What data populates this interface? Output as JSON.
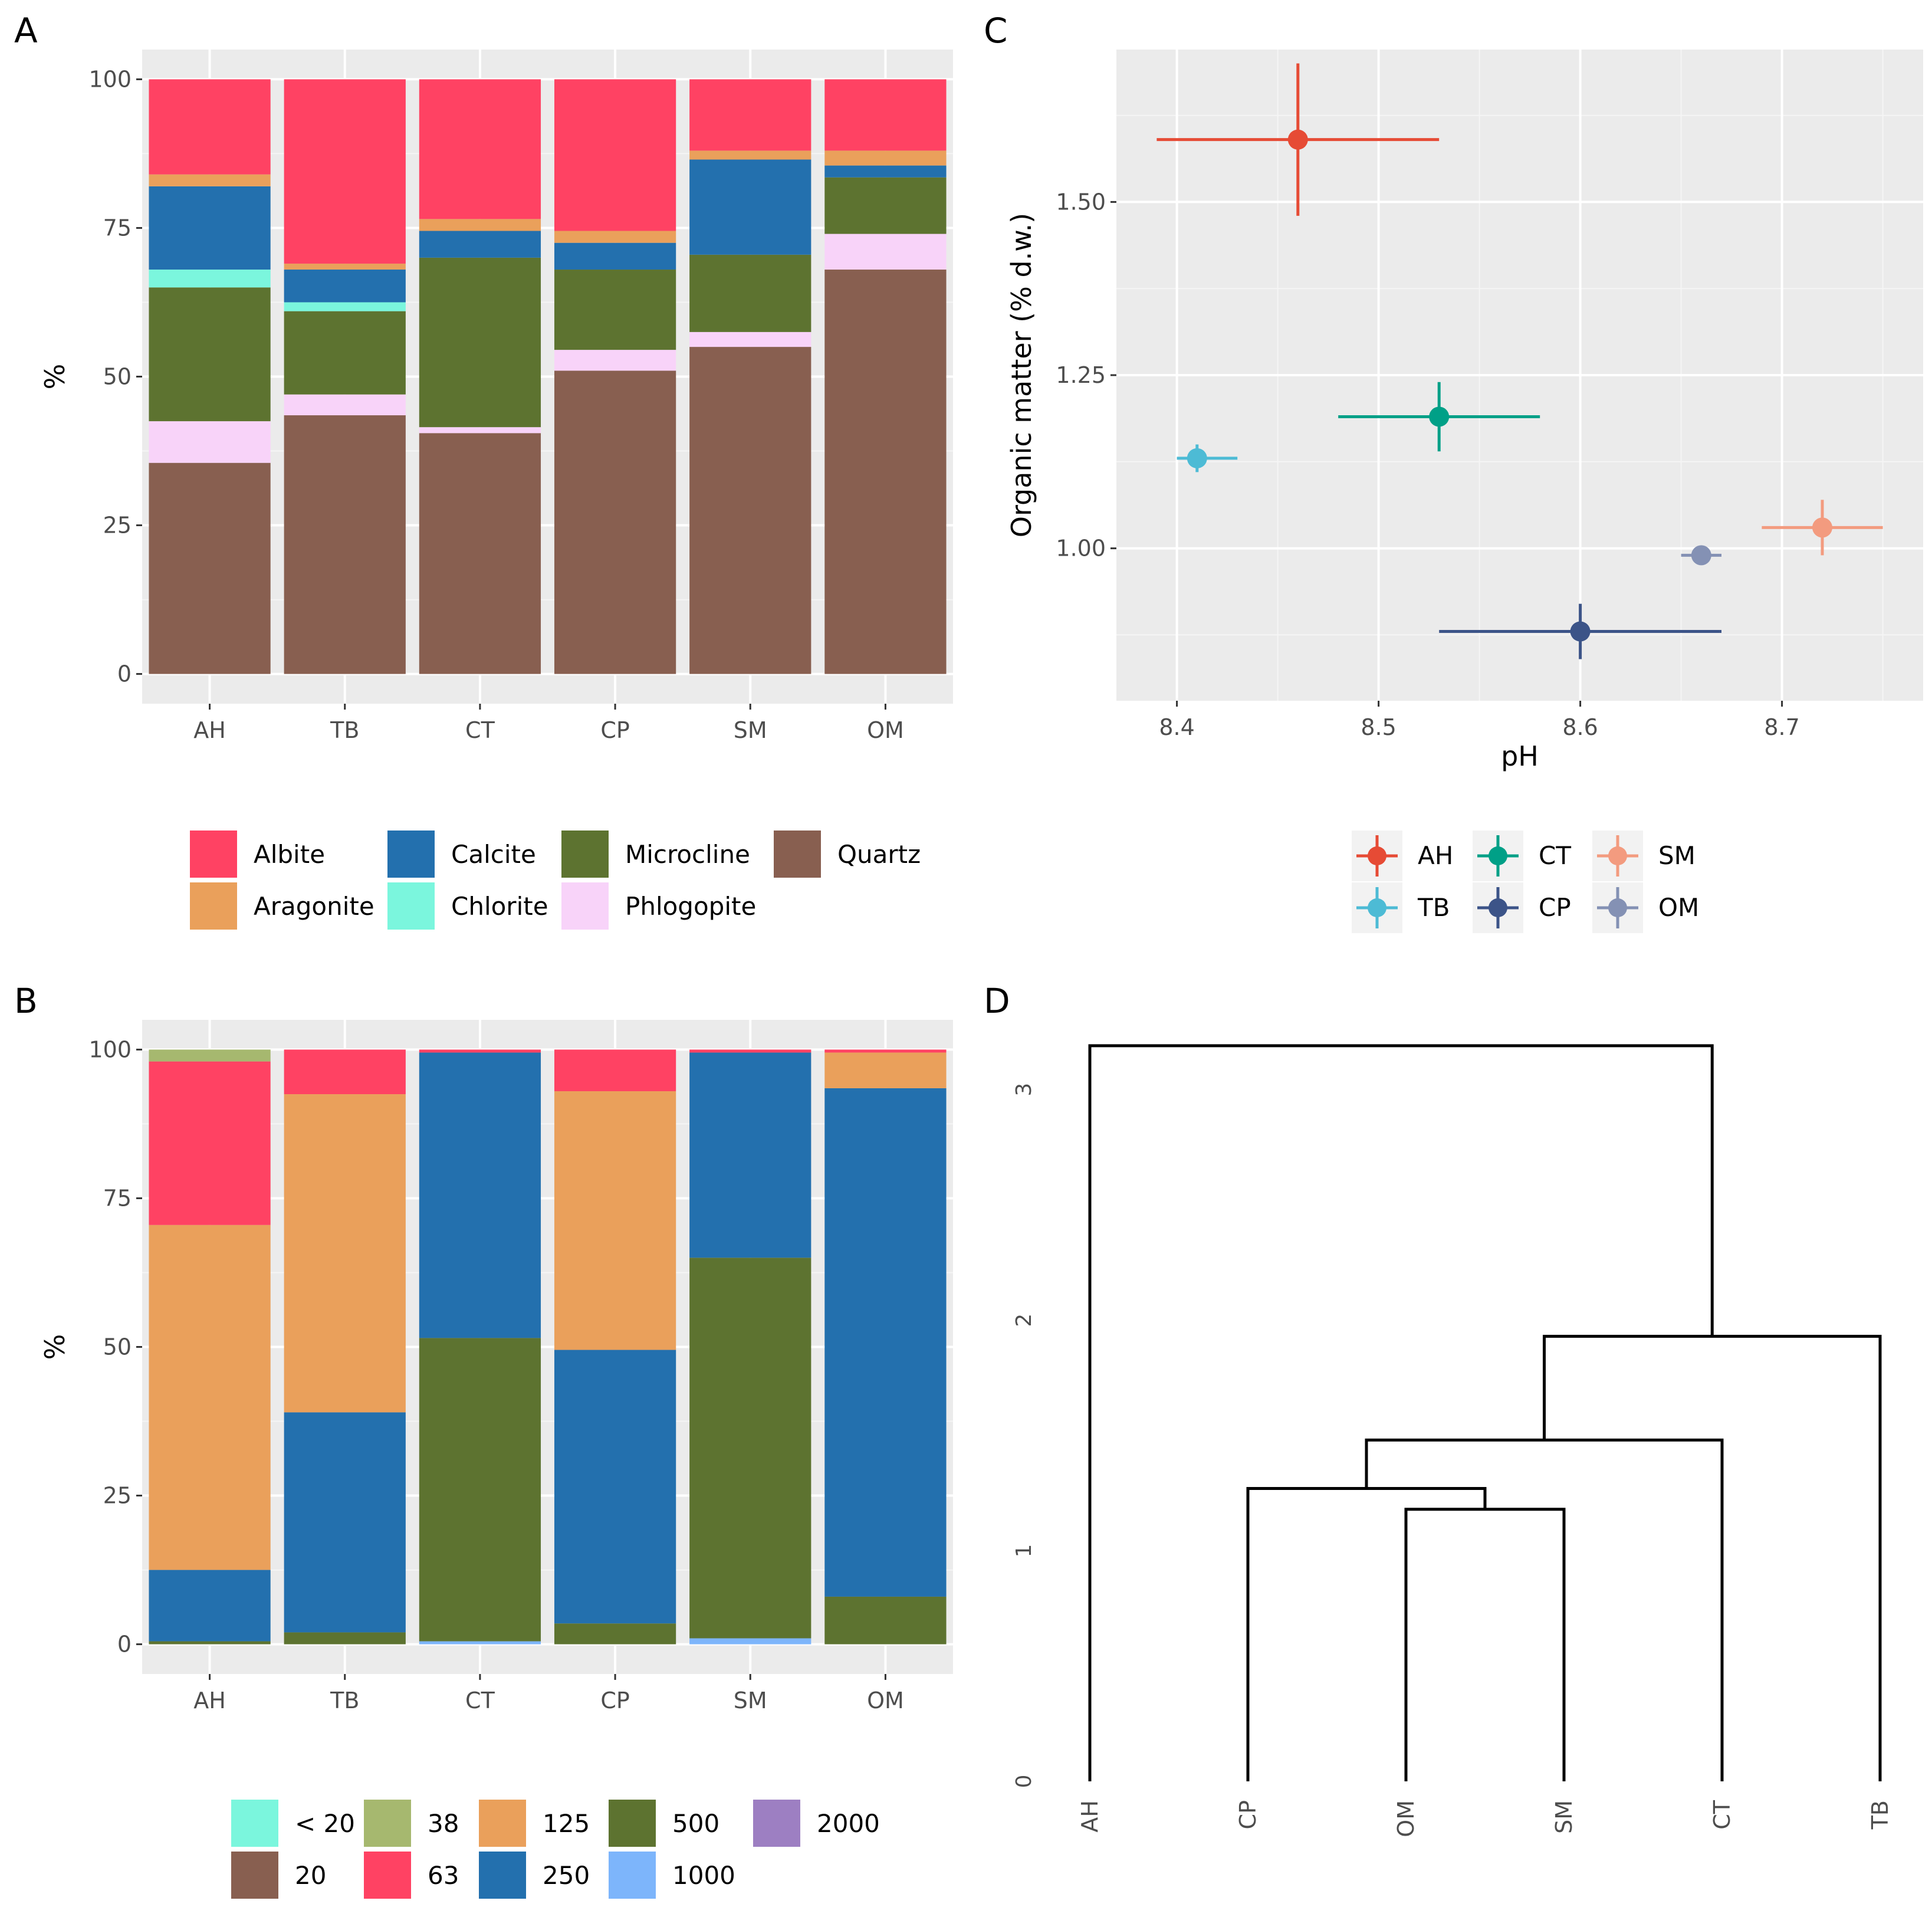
{
  "panels": {
    "A": "A",
    "B": "B",
    "C": "C",
    "D": "D"
  },
  "chart_data": [
    {
      "id": "A",
      "type": "bar",
      "stacked": true,
      "ylabel": "%",
      "ylim": [
        0,
        100
      ],
      "yticks": [
        0,
        25,
        50,
        75,
        100
      ],
      "categories": [
        "AH",
        "TB",
        "CT",
        "CP",
        "SM",
        "OM"
      ],
      "legend": {
        "placement": "bottom",
        "ncol": 4
      },
      "series": [
        {
          "name": "Quartz",
          "color": "#885F50",
          "values": [
            35.5,
            43.5,
            40.5,
            51,
            55,
            68
          ]
        },
        {
          "name": "Phlogopite",
          "color": "#F8D3F9",
          "values": [
            7,
            3.5,
            1,
            3.5,
            2.5,
            6
          ]
        },
        {
          "name": "Microcline",
          "color": "#5D7330",
          "values": [
            22.5,
            14,
            28.5,
            13.5,
            13,
            9.5
          ]
        },
        {
          "name": "Chlorite",
          "color": "#7BF6DD",
          "values": [
            3,
            1.5,
            0,
            0,
            0,
            0
          ]
        },
        {
          "name": "Calcite",
          "color": "#2370AE",
          "values": [
            14,
            5.5,
            4.5,
            4.5,
            16,
            2
          ]
        },
        {
          "name": "Aragonite",
          "color": "#EAA05B",
          "values": [
            2,
            1,
            2,
            2,
            1.5,
            2.5
          ]
        },
        {
          "name": "Albite",
          "color": "#FF4263",
          "values": [
            16,
            31,
            23.5,
            25.5,
            12,
            12
          ]
        }
      ],
      "legend_order": [
        "Albite",
        "Aragonite",
        "Calcite",
        "Chlorite",
        "Microcline",
        "Phlogopite",
        "Quartz"
      ]
    },
    {
      "id": "B",
      "type": "bar",
      "stacked": true,
      "ylabel": "%",
      "ylim": [
        0,
        100
      ],
      "yticks": [
        0,
        25,
        50,
        75,
        100
      ],
      "categories": [
        "AH",
        "TB",
        "CT",
        "CP",
        "SM",
        "OM"
      ],
      "legend": {
        "placement": "bottom",
        "ncol": 5
      },
      "series": [
        {
          "name": "< 20",
          "color": "#7BF6DD",
          "values": [
            0,
            0,
            0,
            0,
            0,
            0
          ]
        },
        {
          "name": "20",
          "color": "#885F50",
          "values": [
            0,
            0,
            0,
            0,
            0,
            0
          ]
        },
        {
          "name": "38",
          "color": "#A6B86F",
          "values": [
            0,
            0,
            0,
            0,
            0,
            0
          ]
        },
        {
          "name": "1000",
          "color": "#7DB5FB",
          "values": [
            0,
            0,
            0.5,
            0,
            1,
            0
          ]
        },
        {
          "name": "500",
          "color": "#5D7330",
          "values": [
            0.5,
            2,
            51,
            3.5,
            64,
            8
          ]
        },
        {
          "name": "250",
          "color": "#2370AE",
          "values": [
            12,
            37,
            48,
            46,
            34.5,
            85.5
          ]
        },
        {
          "name": "125",
          "color": "#EAA05B",
          "values": [
            58,
            53.5,
            0,
            43.5,
            0,
            6
          ]
        },
        {
          "name": "63",
          "color": "#FF4263",
          "values": [
            27.5,
            7.5,
            0.5,
            7,
            0.5,
            0.5
          ]
        },
        {
          "name": "38 ",
          "color": "#A6B86F",
          "values": [
            2,
            0,
            0,
            0,
            0,
            0
          ]
        },
        {
          "name": "2000",
          "color": "#9D7FC2",
          "values": [
            0,
            0,
            0,
            0,
            0,
            0
          ]
        }
      ],
      "legend_order": [
        "< 20",
        "20",
        "38",
        "63",
        "125",
        "250",
        "500",
        "1000",
        "2000"
      ]
    },
    {
      "id": "C",
      "type": "scatter",
      "xlabel": "pH",
      "ylabel": "Organic matter (% d.w.)",
      "xlim": [
        8.37,
        8.77
      ],
      "ylim": [
        0.78,
        1.72
      ],
      "xticks": [
        8.4,
        8.5,
        8.6,
        8.7
      ],
      "yticks": [
        1.0,
        1.25,
        1.5
      ],
      "legend": {
        "placement": "bottom",
        "ncol": 3
      },
      "points": [
        {
          "name": "AH",
          "color": "#E64B35",
          "x": 8.46,
          "y": 1.59,
          "xmin": 8.39,
          "xmax": 8.53,
          "ymin": 1.48,
          "ymax": 1.7
        },
        {
          "name": "TB",
          "color": "#4DBBD5",
          "x": 8.41,
          "y": 1.13,
          "xmin": 8.4,
          "xmax": 8.43,
          "ymin": 1.11,
          "ymax": 1.15
        },
        {
          "name": "CT",
          "color": "#00A087",
          "x": 8.53,
          "y": 1.19,
          "xmin": 8.48,
          "xmax": 8.58,
          "ymin": 1.14,
          "ymax": 1.24
        },
        {
          "name": "CP",
          "color": "#3C5488",
          "x": 8.6,
          "y": 0.88,
          "xmin": 8.53,
          "xmax": 8.67,
          "ymin": 0.84,
          "ymax": 0.92
        },
        {
          "name": "SM",
          "color": "#F39B7F",
          "x": 8.72,
          "y": 1.03,
          "xmin": 8.69,
          "xmax": 8.75,
          "ymin": 0.99,
          "ymax": 1.07
        },
        {
          "name": "OM",
          "color": "#8491B4",
          "x": 8.66,
          "y": 0.99,
          "xmin": 8.65,
          "xmax": 8.67,
          "ymin": 0.98,
          "ymax": 1.0
        }
      ],
      "legend_order": [
        "AH",
        "TB",
        "CT",
        "CP",
        "SM",
        "OM"
      ]
    },
    {
      "id": "D",
      "type": "dendrogram",
      "ylim": [
        0,
        3.2
      ],
      "yticks": [
        0,
        1,
        2,
        3
      ],
      "leaves": [
        "AH",
        "CP",
        "OM",
        "SM",
        "CT",
        "TB"
      ],
      "merges": [
        {
          "left": "OM",
          "right": "SM",
          "height": 1.18
        },
        {
          "left": "CP",
          "right": "OM+SM",
          "height": 1.27
        },
        {
          "left": "CP+OM+SM",
          "right": "CT",
          "height": 1.48
        },
        {
          "left": "CP+OM+SM+CT",
          "right": "TB",
          "height": 1.93
        },
        {
          "left": "AH",
          "right": "rest",
          "height": 3.19
        }
      ]
    }
  ]
}
